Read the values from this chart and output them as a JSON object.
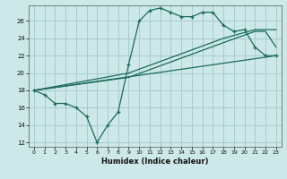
{
  "xlabel": "Humidex (Indice chaleur)",
  "bg_color": "#cce8e8",
  "grid_color": "#a8cccc",
  "line_color": "#1a6b5a",
  "xlim": [
    -0.5,
    23.5
  ],
  "ylim": [
    11.5,
    27.8
  ],
  "xticks": [
    0,
    1,
    2,
    3,
    4,
    5,
    6,
    7,
    8,
    9,
    10,
    11,
    12,
    13,
    14,
    15,
    16,
    17,
    18,
    19,
    20,
    21,
    22,
    23
  ],
  "yticks": [
    12,
    14,
    16,
    18,
    20,
    22,
    24,
    26
  ],
  "line1_x": [
    0,
    1,
    2,
    3,
    4,
    5,
    6,
    7,
    8,
    9,
    10,
    11,
    12,
    13,
    14,
    15,
    16,
    17,
    18,
    19,
    20,
    21,
    22,
    23
  ],
  "line1_y": [
    18.0,
    17.5,
    16.5,
    16.5,
    16.0,
    15.0,
    12.0,
    14.0,
    15.5,
    21.0,
    26.0,
    27.2,
    27.5,
    27.0,
    26.5,
    26.5,
    27.0,
    27.0,
    25.5,
    24.8,
    25.0,
    23.0,
    22.0,
    22.0
  ],
  "line2_x": [
    0,
    23
  ],
  "line2_y": [
    18.0,
    22.0
  ],
  "line3_x": [
    0,
    9,
    18,
    21,
    23
  ],
  "line3_y": [
    18.0,
    20.0,
    24.0,
    25.0,
    25.0
  ],
  "line4_x": [
    0,
    9,
    18,
    21,
    22,
    23
  ],
  "line4_y": [
    18.0,
    19.5,
    23.5,
    24.8,
    24.8,
    23.0
  ]
}
